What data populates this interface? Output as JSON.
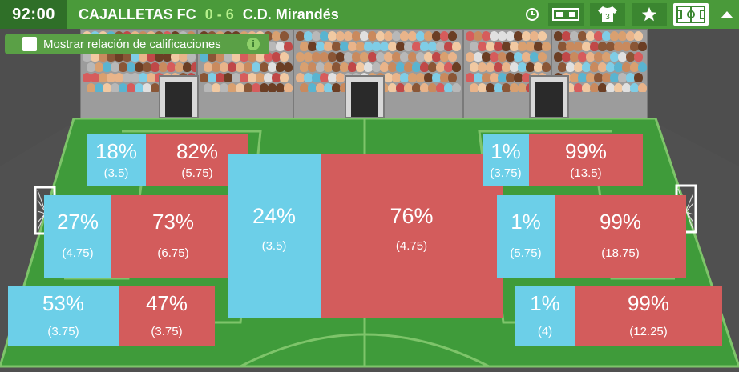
{
  "header": {
    "clock": "92:00",
    "home_team": "CAJALLETAS FC",
    "score": "0 - 6",
    "away_team": "C.D. Mirandés"
  },
  "toolbar": {
    "icons": [
      "clock-icon",
      "scoreboard-icon",
      "jersey-icon",
      "star-icon",
      "pitch-icon",
      "caret-up-icon"
    ],
    "jersey_number": "3"
  },
  "ratings_toggle": {
    "label": "Mostrar relación de calificaciones",
    "checked": false,
    "info_glyph": "i"
  },
  "colors": {
    "home_blue": "#6ccfe8",
    "away_red": "#d35c5c",
    "grass": "#3f9b3a",
    "header_green": "#4a9a3a"
  },
  "zones": {
    "left_top": {
      "home_pct": "18%",
      "home_rating": "(3.5)",
      "away_pct": "82%",
      "away_rating": "(5.75)"
    },
    "left_mid": {
      "home_pct": "27%",
      "home_rating": "(4.75)",
      "away_pct": "73%",
      "away_rating": "(6.75)"
    },
    "left_bottom": {
      "home_pct": "53%",
      "home_rating": "(3.75)",
      "away_pct": "47%",
      "away_rating": "(3.75)"
    },
    "center": {
      "home_pct": "24%",
      "home_rating": "(3.5)",
      "away_pct": "76%",
      "away_rating": "(4.75)"
    },
    "right_top": {
      "home_pct": "1%",
      "home_rating": "(3.75)",
      "away_pct": "99%",
      "away_rating": "(13.5)"
    },
    "right_mid": {
      "home_pct": "1%",
      "home_rating": "(5.75)",
      "away_pct": "99%",
      "away_rating": "(18.75)"
    },
    "right_bottom": {
      "home_pct": "1%",
      "home_rating": "(4)",
      "away_pct": "99%",
      "away_rating": "(12.25)"
    }
  }
}
